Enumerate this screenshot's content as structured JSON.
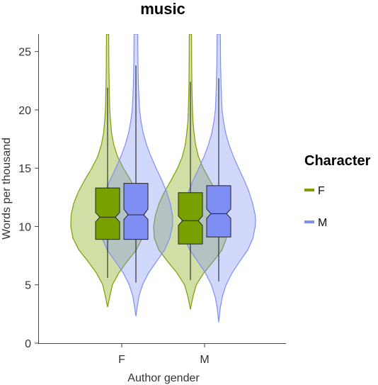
{
  "chart_data": {
    "type": "violin",
    "title": "music",
    "xlabel": "Author gender",
    "ylabel": "Words per thousand",
    "categories": [
      "F",
      "M"
    ],
    "ylim": [
      0,
      26.5
    ],
    "yticks": [
      0,
      5,
      10,
      15,
      20,
      25
    ],
    "grid": false,
    "legend": {
      "title": "Character",
      "position": "right",
      "entries": [
        {
          "label": "F",
          "color": "#7aa000"
        },
        {
          "label": "M",
          "color": "#7f8ef5"
        }
      ]
    },
    "colors": {
      "F": "#7aa000",
      "M": "#7f8ef5"
    },
    "series": [
      {
        "name": "F",
        "groups": [
          {
            "category": "F",
            "q1": 8.9,
            "median": 10.8,
            "q3": 13.3,
            "whisker_low": 5.6,
            "whisker_high": 21.9,
            "notch_low": 10.4,
            "notch_high": 11.2,
            "min": 3.1,
            "max": 26.5,
            "density": [
              [
                3.1,
                0.0
              ],
              [
                4.0,
                0.06
              ],
              [
                5.0,
                0.13
              ],
              [
                6.0,
                0.3
              ],
              [
                7.0,
                0.53
              ],
              [
                8.0,
                0.78
              ],
              [
                9.0,
                0.94
              ],
              [
                10.0,
                1.0
              ],
              [
                11.0,
                0.99
              ],
              [
                12.0,
                0.92
              ],
              [
                13.0,
                0.79
              ],
              [
                14.0,
                0.62
              ],
              [
                15.0,
                0.43
              ],
              [
                16.0,
                0.27
              ],
              [
                17.0,
                0.17
              ],
              [
                18.0,
                0.11
              ],
              [
                19.0,
                0.08
              ],
              [
                20.0,
                0.06
              ],
              [
                22.0,
                0.045
              ],
              [
                24.0,
                0.035
              ],
              [
                26.5,
                0.03
              ]
            ]
          },
          {
            "category": "M",
            "q1": 8.5,
            "median": 10.5,
            "q3": 12.9,
            "whisker_low": 5.4,
            "whisker_high": 22.4,
            "notch_low": 10.1,
            "notch_high": 10.9,
            "min": 2.9,
            "max": 26.5,
            "density": [
              [
                2.9,
                0.0
              ],
              [
                4.0,
                0.07
              ],
              [
                5.0,
                0.16
              ],
              [
                6.0,
                0.36
              ],
              [
                7.0,
                0.62
              ],
              [
                8.0,
                0.86
              ],
              [
                9.0,
                0.98
              ],
              [
                10.0,
                1.0
              ],
              [
                11.0,
                0.95
              ],
              [
                12.0,
                0.85
              ],
              [
                13.0,
                0.7
              ],
              [
                14.0,
                0.52
              ],
              [
                15.0,
                0.35
              ],
              [
                16.0,
                0.22
              ],
              [
                17.0,
                0.14
              ],
              [
                18.0,
                0.1
              ],
              [
                19.0,
                0.07
              ],
              [
                20.0,
                0.055
              ],
              [
                22.0,
                0.04
              ],
              [
                24.0,
                0.035
              ],
              [
                26.5,
                0.03
              ]
            ]
          }
        ]
      },
      {
        "name": "M",
        "groups": [
          {
            "category": "F",
            "q1": 8.9,
            "median": 11.0,
            "q3": 13.7,
            "whisker_low": 5.2,
            "whisker_high": 23.8,
            "notch_low": 10.6,
            "notch_high": 11.5,
            "min": 2.3,
            "max": 26.5,
            "density": [
              [
                2.3,
                0.0
              ],
              [
                3.0,
                0.03
              ],
              [
                4.0,
                0.08
              ],
              [
                5.0,
                0.18
              ],
              [
                6.0,
                0.34
              ],
              [
                7.0,
                0.56
              ],
              [
                8.0,
                0.78
              ],
              [
                9.0,
                0.92
              ],
              [
                10.0,
                0.99
              ],
              [
                10.5,
                1.0
              ],
              [
                11.0,
                0.99
              ],
              [
                12.0,
                0.93
              ],
              [
                13.0,
                0.83
              ],
              [
                14.0,
                0.7
              ],
              [
                15.0,
                0.55
              ],
              [
                16.0,
                0.41
              ],
              [
                17.0,
                0.29
              ],
              [
                18.0,
                0.2
              ],
              [
                19.0,
                0.14
              ],
              [
                20.0,
                0.1
              ],
              [
                22.0,
                0.07
              ],
              [
                24.0,
                0.055
              ],
              [
                26.5,
                0.05
              ]
            ]
          },
          {
            "category": "M",
            "q1": 9.1,
            "median": 11.1,
            "q3": 13.5,
            "whisker_low": 5.3,
            "whisker_high": 22.7,
            "notch_low": 10.7,
            "notch_high": 11.5,
            "min": 1.8,
            "max": 26.5,
            "density": [
              [
                1.8,
                0.0
              ],
              [
                3.0,
                0.04
              ],
              [
                4.0,
                0.1
              ],
              [
                5.0,
                0.2
              ],
              [
                6.0,
                0.36
              ],
              [
                7.0,
                0.57
              ],
              [
                8.0,
                0.79
              ],
              [
                9.0,
                0.93
              ],
              [
                10.0,
                0.99
              ],
              [
                10.5,
                1.0
              ],
              [
                11.0,
                0.99
              ],
              [
                12.0,
                0.92
              ],
              [
                13.0,
                0.82
              ],
              [
                14.0,
                0.69
              ],
              [
                15.0,
                0.54
              ],
              [
                16.0,
                0.4
              ],
              [
                17.0,
                0.28
              ],
              [
                18.0,
                0.19
              ],
              [
                19.0,
                0.13
              ],
              [
                20.0,
                0.09
              ],
              [
                22.0,
                0.065
              ],
              [
                24.0,
                0.05
              ],
              [
                26.5,
                0.045
              ]
            ]
          }
        ]
      }
    ]
  }
}
